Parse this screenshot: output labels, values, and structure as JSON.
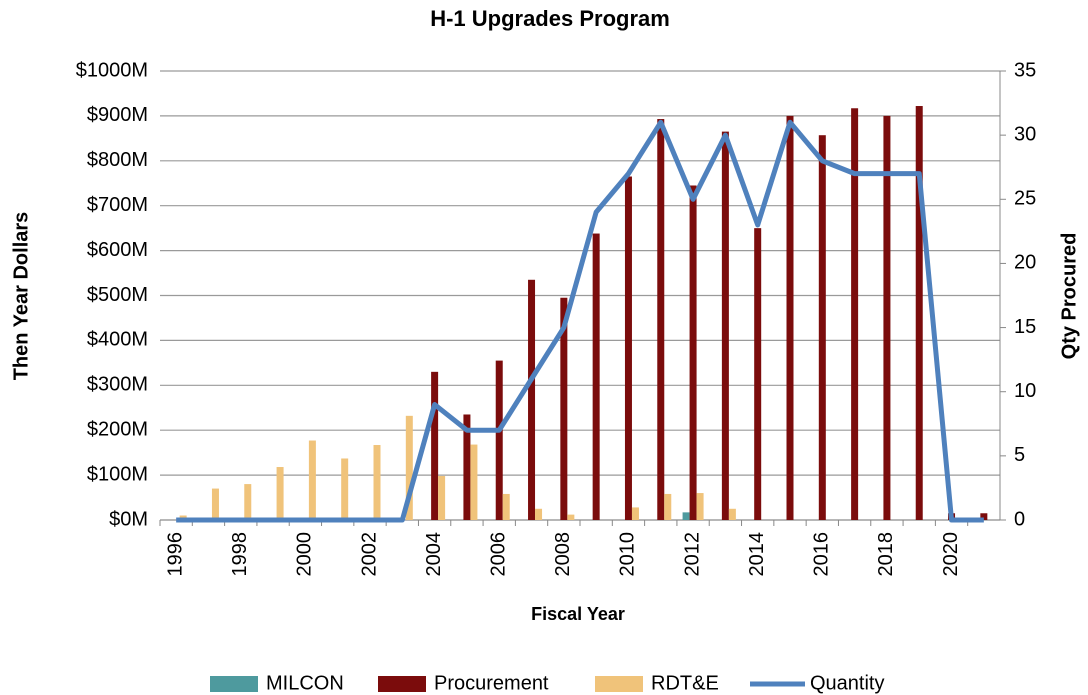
{
  "chart_data": {
    "type": "bar_line",
    "title": "H-1 Upgrades Program",
    "ylabel": "Then Year Dollars",
    "y2label": "Qty Procured",
    "xlabel": "Fiscal Year",
    "categories": [
      "1996",
      null,
      "1998",
      null,
      "2000",
      null,
      "2002",
      null,
      "2004",
      null,
      "2006",
      null,
      "2008",
      null,
      "2010",
      null,
      "2012",
      null,
      "2014",
      null,
      "2016",
      null,
      "2018",
      null,
      "2020",
      null
    ],
    "series": [
      {
        "name": "MILCON",
        "color": "#4e9a9e",
        "values": [
          0,
          0,
          0,
          0,
          0,
          0,
          0,
          0,
          0,
          0,
          0,
          0,
          0,
          0,
          0,
          0,
          17,
          0,
          0,
          0,
          0,
          0,
          0,
          0,
          0,
          0
        ]
      },
      {
        "name": "Procurement",
        "color": "#7b0c0c",
        "values": [
          0,
          0,
          0,
          0,
          0,
          0,
          0,
          0,
          330,
          235,
          355,
          535,
          495,
          638,
          765,
          893,
          745,
          865,
          650,
          900,
          857,
          917,
          900,
          922,
          15,
          15
        ]
      },
      {
        "name": "RDT&E",
        "color": "#f0c37a",
        "values": [
          10,
          70,
          80,
          118,
          177,
          137,
          167,
          232,
          98,
          168,
          58,
          25,
          12,
          0,
          28,
          58,
          60,
          25,
          0,
          0,
          0,
          0,
          0,
          0,
          0,
          0
        ]
      },
      {
        "name": "Quantity",
        "color": "#4f81bd",
        "axis": "y2",
        "type": "line",
        "values": [
          0,
          0,
          0,
          0,
          0,
          0,
          0,
          0,
          9,
          7,
          7,
          11,
          15,
          24,
          27,
          31,
          25,
          30,
          23,
          31,
          28,
          27,
          27,
          27,
          0,
          0
        ]
      }
    ],
    "ylim": [
      0,
      1000
    ],
    "yticks": [
      {
        "value": 0,
        "label": "$0M"
      },
      {
        "value": 100,
        "label": "$100M"
      },
      {
        "value": 200,
        "label": "$200M"
      },
      {
        "value": 300,
        "label": "$300M"
      },
      {
        "value": 400,
        "label": "$400M"
      },
      {
        "value": 500,
        "label": "$500M"
      },
      {
        "value": 600,
        "label": "$600M"
      },
      {
        "value": 700,
        "label": "$700M"
      },
      {
        "value": 800,
        "label": "$800M"
      },
      {
        "value": 900,
        "label": "$900M"
      },
      {
        "value": 1000,
        "label": "$1000M"
      }
    ],
    "y2lim": [
      0,
      35
    ],
    "y2ticks": [
      0,
      5,
      10,
      15,
      20,
      25,
      30,
      35
    ],
    "grid": true,
    "legend": "bottom"
  }
}
